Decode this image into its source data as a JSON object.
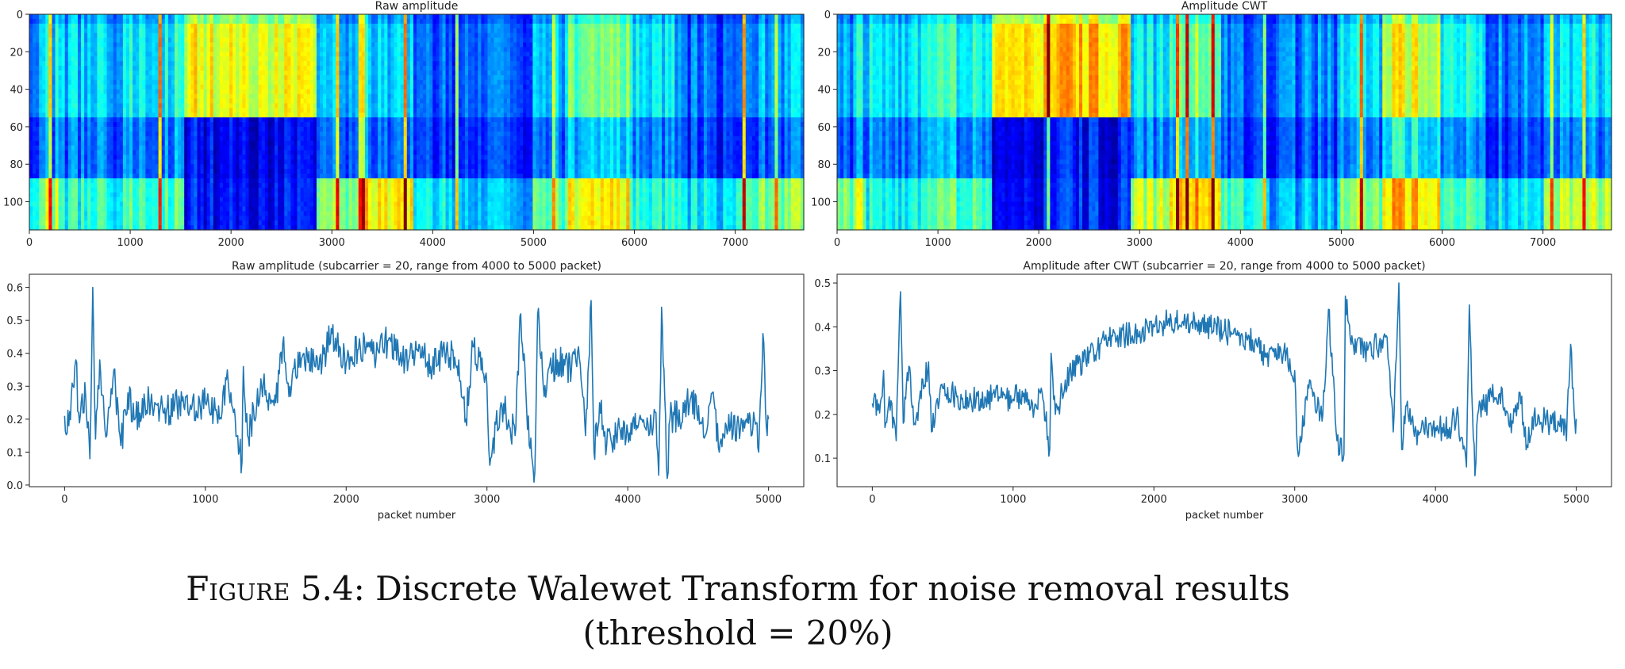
{
  "caption": {
    "label": "Figure 5.4:",
    "line1": "Discrete Walewet Transform for noise removal results",
    "line2": "(threshold = 20%)"
  },
  "chart_data": [
    {
      "type": "heatmap",
      "title": "Raw amplitude",
      "colormap": "jet",
      "xlim": [
        0,
        7680
      ],
      "ylim": [
        115,
        0
      ],
      "xticks": [
        "0",
        "1000",
        "2000",
        "3000",
        "4000",
        "5000",
        "6000",
        "7000"
      ],
      "yticks": [
        "0",
        "20",
        "40",
        "60",
        "80",
        "100"
      ],
      "segments": [
        {
          "x": [
            0,
            150
          ],
          "top": 0.3,
          "bottom": 0.45
        },
        {
          "x": [
            150,
            300
          ],
          "top": 0.35,
          "bottom": 0.55
        },
        {
          "x": [
            300,
            1000
          ],
          "top": 0.32,
          "bottom": 0.4
        },
        {
          "x": [
            1000,
            1550
          ],
          "top": 0.38,
          "bottom": 0.45
        },
        {
          "x": [
            1550,
            2850
          ],
          "top": 0.62,
          "bottom": 0.15
        },
        {
          "x": [
            2850,
            3300
          ],
          "top": 0.3,
          "bottom": 0.5
        },
        {
          "x": [
            3300,
            3800
          ],
          "top": 0.35,
          "bottom": 0.65
        },
        {
          "x": [
            3800,
            4300
          ],
          "top": 0.2,
          "bottom": 0.35
        },
        {
          "x": [
            4300,
            5000
          ],
          "top": 0.22,
          "bottom": 0.3
        },
        {
          "x": [
            5000,
            5350
          ],
          "top": 0.3,
          "bottom": 0.45
        },
        {
          "x": [
            5350,
            5950
          ],
          "top": 0.48,
          "bottom": 0.62
        },
        {
          "x": [
            5950,
            6400
          ],
          "top": 0.35,
          "bottom": 0.4
        },
        {
          "x": [
            6400,
            7000
          ],
          "top": 0.22,
          "bottom": 0.35
        },
        {
          "x": [
            7000,
            7680
          ],
          "top": 0.3,
          "bottom": 0.5
        }
      ],
      "spikes": [
        200,
        1300,
        3050,
        3280,
        3320,
        3740,
        4250,
        5200,
        7080,
        7400
      ]
    },
    {
      "type": "heatmap",
      "title": "Amplitude CWT",
      "colormap": "jet",
      "xlim": [
        0,
        7680
      ],
      "ylim": [
        115,
        0
      ],
      "xticks": [
        "0",
        "1000",
        "2000",
        "3000",
        "4000",
        "5000",
        "6000",
        "7000"
      ],
      "yticks": [
        "0",
        "20",
        "40",
        "60",
        "80",
        "100"
      ],
      "segments": [
        {
          "x": [
            0,
            150
          ],
          "top": 0.3,
          "bottom": 0.5
        },
        {
          "x": [
            150,
            300
          ],
          "top": 0.35,
          "bottom": 0.55
        },
        {
          "x": [
            300,
            1000
          ],
          "top": 0.35,
          "bottom": 0.38
        },
        {
          "x": [
            1000,
            1550
          ],
          "top": 0.4,
          "bottom": 0.45
        },
        {
          "x": [
            1550,
            2900
          ],
          "top": 0.68,
          "bottom": 0.15
        },
        {
          "x": [
            2900,
            3300
          ],
          "top": 0.35,
          "bottom": 0.55
        },
        {
          "x": [
            3300,
            3800
          ],
          "top": 0.5,
          "bottom": 0.7
        },
        {
          "x": [
            3800,
            4300
          ],
          "top": 0.22,
          "bottom": 0.4
        },
        {
          "x": [
            4300,
            5000
          ],
          "top": 0.25,
          "bottom": 0.3
        },
        {
          "x": [
            5000,
            5400
          ],
          "top": 0.35,
          "bottom": 0.5
        },
        {
          "x": [
            5400,
            6000
          ],
          "top": 0.6,
          "bottom": 0.68
        },
        {
          "x": [
            6000,
            6400
          ],
          "top": 0.4,
          "bottom": 0.45
        },
        {
          "x": [
            6400,
            7000
          ],
          "top": 0.25,
          "bottom": 0.35
        },
        {
          "x": [
            7000,
            7680
          ],
          "top": 0.35,
          "bottom": 0.55
        }
      ],
      "spikes": [
        2100,
        3380,
        3460,
        3740,
        4250,
        5200,
        7080,
        7400
      ]
    },
    {
      "type": "line",
      "title": "Raw amplitude (subcarrier = 20, range from 4000 to 5000 packet)",
      "xlabel": "packet number",
      "xlim": [
        -250,
        5250
      ],
      "ylim": [
        -0.005,
        0.64
      ],
      "xticks": [
        0,
        1000,
        2000,
        3000,
        4000,
        5000
      ],
      "yticks": [
        "0.0",
        "0.1",
        "0.2",
        "0.3",
        "0.4",
        "0.5",
        "0.6"
      ],
      "color": "#1f77b4",
      "noise": 0.05,
      "points": [
        [
          0,
          0.21
        ],
        [
          30,
          0.18
        ],
        [
          60,
          0.3
        ],
        [
          80,
          0.38
        ],
        [
          100,
          0.22
        ],
        [
          150,
          0.27
        ],
        [
          180,
          0.08
        ],
        [
          200,
          0.6
        ],
        [
          220,
          0.14
        ],
        [
          250,
          0.38
        ],
        [
          300,
          0.15
        ],
        [
          350,
          0.35
        ],
        [
          400,
          0.12
        ],
        [
          450,
          0.28
        ],
        [
          500,
          0.2
        ],
        [
          600,
          0.26
        ],
        [
          700,
          0.22
        ],
        [
          800,
          0.24
        ],
        [
          900,
          0.23
        ],
        [
          1000,
          0.25
        ],
        [
          1100,
          0.2
        ],
        [
          1150,
          0.32
        ],
        [
          1200,
          0.22
        ],
        [
          1260,
          0.07
        ],
        [
          1270,
          0.36
        ],
        [
          1300,
          0.15
        ],
        [
          1400,
          0.3
        ],
        [
          1500,
          0.25
        ],
        [
          1550,
          0.43
        ],
        [
          1600,
          0.3
        ],
        [
          1700,
          0.4
        ],
        [
          1800,
          0.35
        ],
        [
          1900,
          0.46
        ],
        [
          2000,
          0.37
        ],
        [
          2100,
          0.42
        ],
        [
          2200,
          0.39
        ],
        [
          2300,
          0.44
        ],
        [
          2400,
          0.38
        ],
        [
          2500,
          0.41
        ],
        [
          2600,
          0.36
        ],
        [
          2700,
          0.4
        ],
        [
          2800,
          0.38
        ],
        [
          2850,
          0.2
        ],
        [
          2900,
          0.42
        ],
        [
          3000,
          0.3
        ],
        [
          3020,
          0.06
        ],
        [
          3100,
          0.25
        ],
        [
          3200,
          0.15
        ],
        [
          3240,
          0.52
        ],
        [
          3300,
          0.12
        ],
        [
          3340,
          0.04
        ],
        [
          3360,
          0.52
        ],
        [
          3400,
          0.3
        ],
        [
          3500,
          0.38
        ],
        [
          3600,
          0.35
        ],
        [
          3650,
          0.42
        ],
        [
          3700,
          0.15
        ],
        [
          3740,
          0.56
        ],
        [
          3760,
          0.1
        ],
        [
          3800,
          0.25
        ],
        [
          3850,
          0.12
        ],
        [
          3900,
          0.15
        ],
        [
          4000,
          0.16
        ],
        [
          4100,
          0.2
        ],
        [
          4150,
          0.15
        ],
        [
          4200,
          0.22
        ],
        [
          4220,
          0.03
        ],
        [
          4240,
          0.54
        ],
        [
          4280,
          0.02
        ],
        [
          4300,
          0.2
        ],
        [
          4400,
          0.22
        ],
        [
          4450,
          0.27
        ],
        [
          4550,
          0.15
        ],
        [
          4600,
          0.28
        ],
        [
          4650,
          0.1
        ],
        [
          4700,
          0.18
        ],
        [
          4800,
          0.17
        ],
        [
          4900,
          0.2
        ],
        [
          4930,
          0.1
        ],
        [
          4960,
          0.46
        ],
        [
          4990,
          0.15
        ],
        [
          5000,
          0.2
        ]
      ]
    },
    {
      "type": "line",
      "title": "Amplitude after CWT (subcarrier = 20, range from 4000 to 5000 packet)",
      "xlabel": "packet number",
      "xlim": [
        -250,
        5250
      ],
      "ylim": [
        0.035,
        0.52
      ],
      "xticks": [
        0,
        1000,
        2000,
        3000,
        4000,
        5000
      ],
      "yticks": [
        "0.1",
        "0.2",
        "0.3",
        "0.4",
        "0.5"
      ],
      "color": "#1f77b4",
      "noise": 0.03,
      "points": [
        [
          0,
          0.225
        ],
        [
          40,
          0.21
        ],
        [
          70,
          0.24
        ],
        [
          80,
          0.3
        ],
        [
          90,
          0.17
        ],
        [
          120,
          0.24
        ],
        [
          170,
          0.14
        ],
        [
          200,
          0.48
        ],
        [
          220,
          0.18
        ],
        [
          260,
          0.31
        ],
        [
          300,
          0.18
        ],
        [
          400,
          0.32
        ],
        [
          420,
          0.16
        ],
        [
          500,
          0.26
        ],
        [
          600,
          0.24
        ],
        [
          700,
          0.235
        ],
        [
          800,
          0.24
        ],
        [
          900,
          0.24
        ],
        [
          1000,
          0.235
        ],
        [
          1100,
          0.25
        ],
        [
          1150,
          0.21
        ],
        [
          1200,
          0.26
        ],
        [
          1260,
          0.12
        ],
        [
          1270,
          0.34
        ],
        [
          1300,
          0.2
        ],
        [
          1400,
          0.3
        ],
        [
          1500,
          0.32
        ],
        [
          1600,
          0.35
        ],
        [
          1700,
          0.38
        ],
        [
          1800,
          0.38
        ],
        [
          1900,
          0.39
        ],
        [
          2000,
          0.4
        ],
        [
          2100,
          0.41
        ],
        [
          2200,
          0.41
        ],
        [
          2300,
          0.41
        ],
        [
          2400,
          0.4
        ],
        [
          2500,
          0.39
        ],
        [
          2600,
          0.38
        ],
        [
          2700,
          0.37
        ],
        [
          2800,
          0.33
        ],
        [
          2900,
          0.35
        ],
        [
          3000,
          0.3
        ],
        [
          3020,
          0.12
        ],
        [
          3100,
          0.26
        ],
        [
          3200,
          0.2
        ],
        [
          3240,
          0.44
        ],
        [
          3300,
          0.14
        ],
        [
          3350,
          0.11
        ],
        [
          3360,
          0.47
        ],
        [
          3400,
          0.36
        ],
        [
          3500,
          0.35
        ],
        [
          3600,
          0.36
        ],
        [
          3650,
          0.38
        ],
        [
          3700,
          0.16
        ],
        [
          3740,
          0.5
        ],
        [
          3760,
          0.12
        ],
        [
          3800,
          0.23
        ],
        [
          3850,
          0.15
        ],
        [
          3900,
          0.17
        ],
        [
          4000,
          0.17
        ],
        [
          4100,
          0.17
        ],
        [
          4150,
          0.2
        ],
        [
          4220,
          0.08
        ],
        [
          4240,
          0.45
        ],
        [
          4280,
          0.06
        ],
        [
          4300,
          0.2
        ],
        [
          4400,
          0.24
        ],
        [
          4450,
          0.245
        ],
        [
          4550,
          0.18
        ],
        [
          4600,
          0.25
        ],
        [
          4650,
          0.13
        ],
        [
          4700,
          0.2
        ],
        [
          4800,
          0.18
        ],
        [
          4900,
          0.19
        ],
        [
          4930,
          0.14
        ],
        [
          4960,
          0.36
        ],
        [
          4990,
          0.18
        ],
        [
          5000,
          0.19
        ]
      ]
    }
  ]
}
